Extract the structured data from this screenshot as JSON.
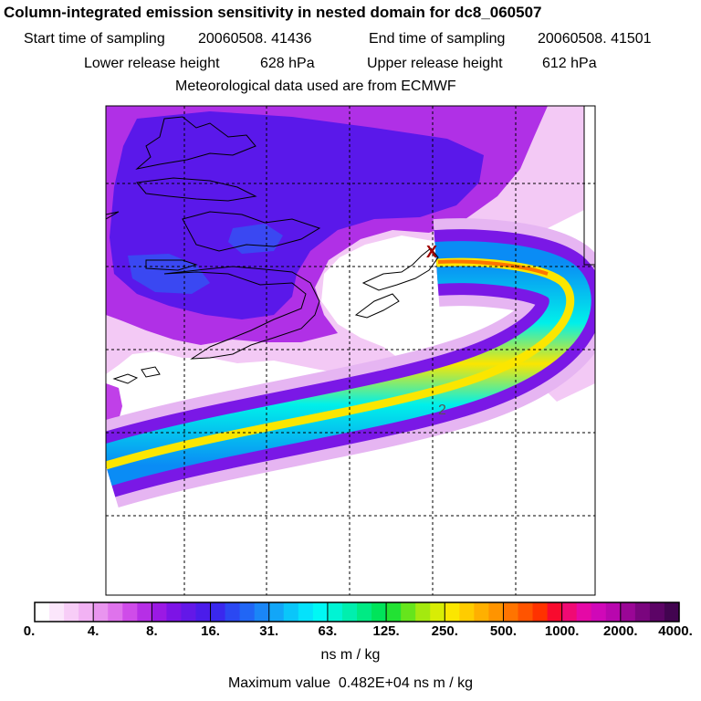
{
  "chart_data": {
    "type": "heatmap",
    "title": "Column-integrated emission sensitivity in nested domain for dc8_060507",
    "start_label": "Start time of sampling",
    "start_value": "20060508. 41436",
    "end_label": "End time of sampling",
    "end_value": "20060508. 41501",
    "lower_label": "Lower release height",
    "lower_value": "628 hPa",
    "upper_label": "Upper release height",
    "upper_value": "612 hPa",
    "met_note": "Meteorological data used are from ECMWF",
    "colorbar": {
      "ticks": [
        "0.",
        "4.",
        "8.",
        "16.",
        "31.",
        "63.",
        "125.",
        "250.",
        "500.",
        "1000.",
        "2000.",
        "4000."
      ],
      "colors": [
        "#ffffff",
        "#fbe6fb",
        "#f7cdf7",
        "#f2b2f4",
        "#e995ef",
        "#df73ec",
        "#cf4ce9",
        "#b62fe6",
        "#9b19e4",
        "#7d14e6",
        "#6318e8",
        "#4b1cea",
        "#3a28ee",
        "#2b48f2",
        "#2166f5",
        "#1a86f7",
        "#12a6f8",
        "#0ac6fa",
        "#05e2fb",
        "#00f8f5",
        "#00f4d4",
        "#00efae",
        "#00ea84",
        "#00e45a",
        "#22e233",
        "#66e51c",
        "#a4e90f",
        "#d8ed05",
        "#fbe600",
        "#ffcc00",
        "#ffb000",
        "#ff9400",
        "#ff7400",
        "#ff5400",
        "#ff3200",
        "#f80b2e",
        "#f00a74",
        "#e509a6",
        "#d008b8",
        "#b807ae",
        "#9a0696",
        "#7a057e",
        "#5c0466",
        "#420450"
      ],
      "units": "ns m / kg"
    },
    "max_label": "Maximum value",
    "max_value": "0.482E+04 ns m / kg",
    "contour_label": "2",
    "release_marker": "X"
  }
}
